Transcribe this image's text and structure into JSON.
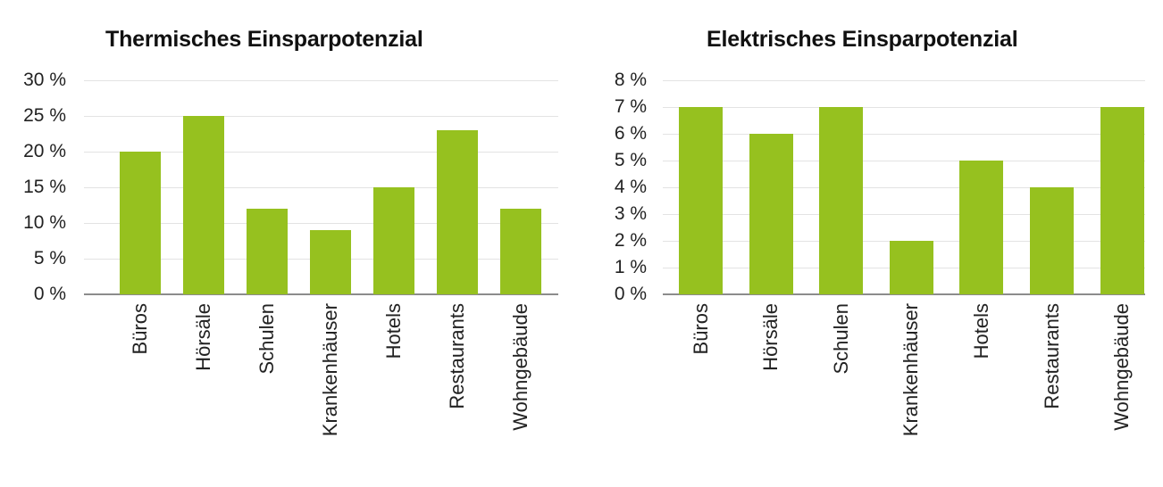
{
  "colors": {
    "bar": "#96c11f",
    "grid": "#e3e3e3",
    "axis": "#8c8c8c"
  },
  "chart_data": [
    {
      "type": "bar",
      "title": "Thermisches Einsparpotenzial",
      "categories": [
        "Büros",
        "Hörsäle",
        "Schulen",
        "Krankenhäuser",
        "Hotels",
        "Restaurants",
        "Wohngebäude"
      ],
      "values": [
        20,
        25,
        12,
        9,
        15,
        23,
        12
      ],
      "unit": "%",
      "xlabel": "",
      "ylabel": "",
      "ylim": [
        0,
        30
      ],
      "yticks": [
        "0 %",
        "5 %",
        "10 %",
        "15 %",
        "20 %",
        "25 %",
        "30 %"
      ],
      "grid": true,
      "legend": null
    },
    {
      "type": "bar",
      "title": "Elektrisches Einsparpotenzial",
      "categories": [
        "Büros",
        "Hörsäle",
        "Schulen",
        "Krankenhäuser",
        "Hotels",
        "Restaurants",
        "Wohngebäude"
      ],
      "values": [
        7,
        6,
        7,
        2,
        5,
        4,
        7
      ],
      "unit": "%",
      "xlabel": "",
      "ylabel": "",
      "ylim": [
        0,
        8
      ],
      "yticks": [
        "0 %",
        "1 %",
        "2 %",
        "3 %",
        "4 %",
        "5 %",
        "6 %",
        "7 %",
        "8 %"
      ],
      "grid": true,
      "legend": null
    }
  ]
}
